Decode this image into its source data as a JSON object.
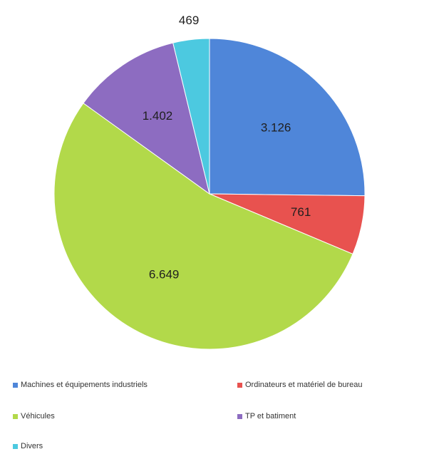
{
  "chart_data": {
    "type": "pie",
    "title": "",
    "slices": [
      {
        "label": "Machines et équipements industriels",
        "value": 3126,
        "display": "3.126",
        "color": "#4f86d9"
      },
      {
        "label": "Ordinateurs et matériel de bureau",
        "value": 761,
        "display": "761",
        "color": "#e8524f"
      },
      {
        "label": "Véhicules",
        "value": 6649,
        "display": "6.649",
        "color": "#b2d94a"
      },
      {
        "label": "TP et batiment",
        "value": 1402,
        "display": "1.402",
        "color": "#8d6cc1"
      },
      {
        "label": "Divers",
        "value": 469,
        "display": "469",
        "color": "#4cc9e0"
      }
    ],
    "legend_position": "bottom",
    "start_angle_degrees": 0,
    "direction": "clockwise"
  }
}
